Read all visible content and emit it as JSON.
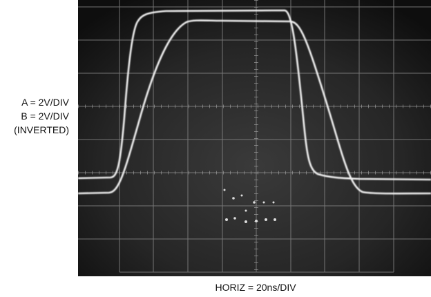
{
  "labels": {
    "channel_a": "A = 2V/DIV",
    "channel_b": "B = 2V/DIV",
    "channel_b_note": "(INVERTED)",
    "horizontal": "HORIZ = 20ns/DIV"
  }
}
